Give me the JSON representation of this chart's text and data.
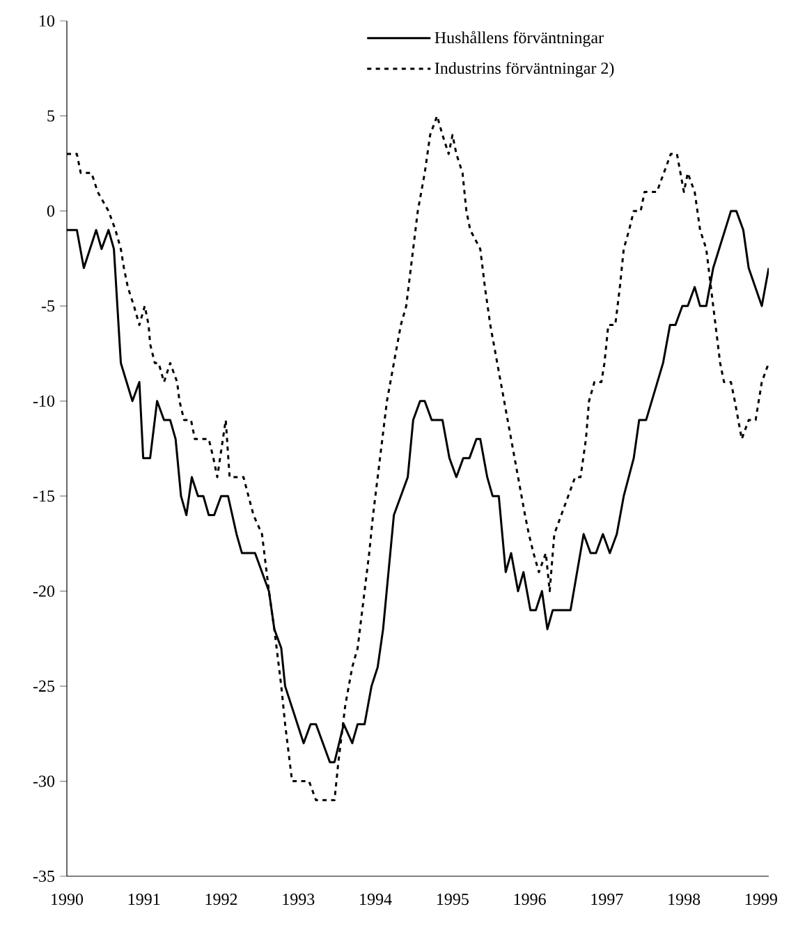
{
  "chart_data": {
    "type": "line",
    "xlim": [
      1990,
      1999.1
    ],
    "xticks": [
      1990,
      1991,
      1992,
      1993,
      1994,
      1995,
      1996,
      1997,
      1998,
      1999
    ],
    "ylim": [
      -35,
      10
    ],
    "yticks": [
      -35,
      -30,
      -25,
      -20,
      -15,
      -10,
      -5,
      0,
      5,
      10
    ],
    "legend": "top",
    "grid": false,
    "series": [
      {
        "name": "Hushållens förväntningar",
        "color": "#000000",
        "line_style": "solid",
        "x": [
          1990.0,
          1990.13,
          1990.22,
          1990.38,
          1990.45,
          1990.54,
          1990.61,
          1990.7,
          1990.85,
          1990.94,
          1990.99,
          1991.08,
          1991.17,
          1991.26,
          1991.34,
          1991.41,
          1991.48,
          1991.55,
          1991.62,
          1991.7,
          1991.77,
          1991.84,
          1991.91,
          1992.0,
          1992.09,
          1992.2,
          1992.27,
          1992.44,
          1992.62,
          1992.69,
          1992.78,
          1992.83,
          1993.07,
          1993.16,
          1993.23,
          1993.41,
          1993.47,
          1993.59,
          1993.7,
          1993.77,
          1993.86,
          1993.95,
          1994.03,
          1994.1,
          1994.24,
          1994.42,
          1994.49,
          1994.58,
          1994.64,
          1994.73,
          1994.87,
          1994.96,
          1995.05,
          1995.14,
          1995.22,
          1995.31,
          1995.36,
          1995.45,
          1995.52,
          1995.6,
          1995.69,
          1995.76,
          1995.85,
          1995.92,
          1996.01,
          1996.08,
          1996.16,
          1996.23,
          1996.3,
          1996.53,
          1996.7,
          1996.79,
          1996.86,
          1996.95,
          1997.04,
          1997.13,
          1997.22,
          1997.35,
          1997.42,
          1997.51,
          1997.73,
          1997.82,
          1997.89,
          1997.98,
          1998.05,
          1998.14,
          1998.21,
          1998.29,
          1998.38,
          1998.61,
          1998.68,
          1998.77,
          1998.84,
          1999.01,
          1999.1
        ],
        "values": [
          -1,
          -1,
          -3,
          -1,
          -2,
          -1,
          -2,
          -8,
          -10,
          -9,
          -13,
          -13,
          -10,
          -11,
          -11,
          -12,
          -15,
          -16,
          -14,
          -15,
          -15,
          -16,
          -16,
          -15,
          -15,
          -17,
          -18,
          -18,
          -20,
          -22,
          -23,
          -25,
          -28,
          -27,
          -27,
          -29,
          -29,
          -27,
          -28,
          -27,
          -27,
          -25,
          -24,
          -22,
          -16,
          -14,
          -11,
          -10,
          -10,
          -11,
          -11,
          -13,
          -14,
          -13,
          -13,
          -12,
          -12,
          -14,
          -15,
          -15,
          -19,
          -18,
          -20,
          -19,
          -21,
          -21,
          -20,
          -22,
          -21,
          -21,
          -17,
          -18,
          -18,
          -17,
          -18,
          -17,
          -15,
          -13,
          -11,
          -11,
          -8,
          -6,
          -6,
          -5,
          -5,
          -4,
          -5,
          -5,
          -3,
          0,
          0,
          -1,
          -3,
          -5,
          -3
        ]
      },
      {
        "name": "Industrins förväntningar 2)",
        "color": "#000000",
        "line_style": "dashed",
        "x": [
          1990.0,
          1990.13,
          1990.18,
          1990.32,
          1990.4,
          1990.54,
          1990.63,
          1990.7,
          1990.74,
          1990.79,
          1990.87,
          1990.94,
          1991.01,
          1991.06,
          1991.08,
          1991.14,
          1991.19,
          1991.26,
          1991.34,
          1991.43,
          1991.46,
          1991.52,
          1991.61,
          1991.66,
          1991.84,
          1991.9,
          1991.95,
          1992.06,
          1992.11,
          1992.29,
          1992.42,
          1992.53,
          1992.62,
          1992.69,
          1992.78,
          1992.83,
          1992.89,
          1992.92,
          1993.14,
          1993.23,
          1993.47,
          1993.52,
          1993.61,
          1993.7,
          1993.77,
          1993.83,
          1993.92,
          1993.97,
          1994.06,
          1994.15,
          1994.24,
          1994.33,
          1994.4,
          1994.49,
          1994.55,
          1994.64,
          1994.71,
          1994.8,
          1994.87,
          1994.95,
          1995.0,
          1995.05,
          1995.13,
          1995.18,
          1995.23,
          1995.36,
          1995.42,
          1995.49,
          1995.58,
          1995.67,
          1995.76,
          1995.85,
          1995.94,
          1995.99,
          1996.05,
          1996.12,
          1996.21,
          1996.26,
          1996.32,
          1996.41,
          1996.5,
          1996.59,
          1996.66,
          1996.73,
          1996.77,
          1996.84,
          1996.93,
          1996.97,
          1997.02,
          1997.11,
          1997.17,
          1997.22,
          1997.29,
          1997.35,
          1997.44,
          1997.49,
          1997.65,
          1997.74,
          1997.83,
          1997.91,
          1998.0,
          1998.05,
          1998.14,
          1998.21,
          1998.29,
          1998.38,
          1998.47,
          1998.52,
          1998.61,
          1998.66,
          1998.75,
          1998.84,
          1998.93,
          1999.01,
          1999.1
        ],
        "values": [
          3,
          3,
          2,
          2,
          1,
          0,
          -1,
          -2,
          -3,
          -4,
          -5,
          -6,
          -5,
          -6,
          -7,
          -8,
          -8,
          -9,
          -8,
          -9,
          -10,
          -11,
          -11,
          -12,
          -12,
          -13,
          -14,
          -11,
          -14,
          -14,
          -16,
          -17,
          -20,
          -22,
          -25,
          -27,
          -29,
          -30,
          -30,
          -31,
          -31,
          -29,
          -26,
          -24,
          -23,
          -21,
          -18,
          -16,
          -13,
          -10,
          -8,
          -6,
          -5,
          -2,
          0,
          2,
          4,
          5,
          4,
          3,
          4,
          3,
          2,
          0,
          -1,
          -2,
          -4,
          -6,
          -8,
          -10,
          -12,
          -14,
          -16,
          -17,
          -18,
          -19,
          -18,
          -20,
          -17,
          -16,
          -15,
          -14,
          -14,
          -12,
          -10,
          -9,
          -9,
          -8,
          -6,
          -6,
          -4,
          -2,
          -1,
          0,
          0,
          1,
          1,
          2,
          3,
          3,
          1,
          2,
          1,
          -1,
          -2,
          -5,
          -8,
          -9,
          -9,
          -10,
          -12,
          -11,
          -11,
          -9,
          -8
        ]
      }
    ]
  }
}
